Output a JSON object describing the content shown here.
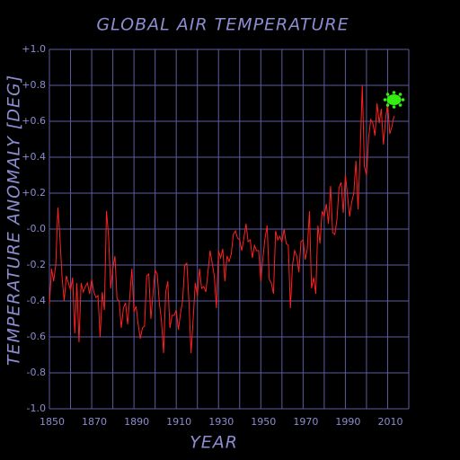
{
  "chart_data": {
    "type": "line",
    "title": "GLOBAL AIR TEMPERATURE",
    "xlabel": "YEAR",
    "ylabel": "TEMPERATURE ANOMALY [DEG]",
    "xlim": [
      1850,
      2020
    ],
    "ylim": [
      -1.0,
      1.0
    ],
    "xticks": [
      1850,
      1870,
      1890,
      1910,
      1930,
      1950,
      1970,
      1990,
      2010
    ],
    "xminor": [
      1860,
      1880,
      1900,
      1920,
      1940,
      1960,
      1980,
      2000,
      2020
    ],
    "yticks": [
      {
        "value": -1.0,
        "label": "-1.0"
      },
      {
        "value": -0.8,
        "label": "-0.8"
      },
      {
        "value": -0.6,
        "label": "-0.6"
      },
      {
        "value": -0.4,
        "label": "-0.4"
      },
      {
        "value": -0.2,
        "label": "-0.2"
      },
      {
        "value": 0,
        "label": "-0.0"
      },
      {
        "value": 0.2,
        "label": "+0.2"
      },
      {
        "value": 0.4,
        "label": "+0.4"
      },
      {
        "value": 0.6,
        "label": "+0.6"
      },
      {
        "value": 0.8,
        "label": "+0.8"
      },
      {
        "value": 1.0,
        "label": "+1.0"
      }
    ],
    "grid": true,
    "grid_color": "#5c5ca0",
    "x": [
      1850,
      1851,
      1852,
      1853,
      1854,
      1855,
      1856,
      1857,
      1858,
      1859,
      1860,
      1861,
      1862,
      1863,
      1864,
      1865,
      1866,
      1867,
      1868,
      1869,
      1870,
      1871,
      1872,
      1873,
      1874,
      1875,
      1876,
      1877,
      1878,
      1879,
      1880,
      1881,
      1882,
      1883,
      1884,
      1885,
      1886,
      1887,
      1888,
      1889,
      1890,
      1891,
      1892,
      1893,
      1894,
      1895,
      1896,
      1897,
      1898,
      1899,
      1900,
      1901,
      1902,
      1903,
      1904,
      1905,
      1906,
      1907,
      1908,
      1909,
      1910,
      1911,
      1912,
      1913,
      1914,
      1915,
      1916,
      1917,
      1918,
      1919,
      1920,
      1921,
      1922,
      1923,
      1924,
      1925,
      1926,
      1927,
      1928,
      1929,
      1930,
      1931,
      1932,
      1933,
      1934,
      1935,
      1936,
      1937,
      1938,
      1939,
      1940,
      1941,
      1942,
      1943,
      1944,
      1945,
      1946,
      1947,
      1948,
      1949,
      1950,
      1951,
      1952,
      1953,
      1954,
      1955,
      1956,
      1957,
      1958,
      1959,
      1960,
      1961,
      1962,
      1963,
      1964,
      1965,
      1966,
      1967,
      1968,
      1969,
      1970,
      1971,
      1972,
      1973,
      1974,
      1975,
      1976,
      1977,
      1978,
      1979,
      1980,
      1981,
      1982,
      1983,
      1984,
      1985,
      1986,
      1987,
      1988,
      1989,
      1990,
      1991,
      1992,
      1993,
      1994,
      1995,
      1996,
      1997,
      1998,
      1999,
      2000,
      2001,
      2002,
      2003,
      2004,
      2005,
      2006,
      2007,
      2008,
      2009,
      2010,
      2011,
      2012,
      2013
    ],
    "series": [
      {
        "color": "#ff2020",
        "values": [
          -0.42,
          -0.22,
          -0.29,
          -0.2,
          0.12,
          -0.05,
          -0.27,
          -0.4,
          -0.26,
          -0.3,
          -0.34,
          -0.27,
          -0.58,
          -0.3,
          -0.63,
          -0.3,
          -0.35,
          -0.32,
          -0.3,
          -0.36,
          -0.28,
          -0.35,
          -0.38,
          -0.37,
          -0.6,
          -0.35,
          -0.45,
          0.1,
          -0.04,
          -0.33,
          -0.22,
          -0.15,
          -0.39,
          -0.4,
          -0.55,
          -0.44,
          -0.41,
          -0.53,
          -0.38,
          -0.22,
          -0.46,
          -0.43,
          -0.53,
          -0.61,
          -0.55,
          -0.54,
          -0.26,
          -0.25,
          -0.5,
          -0.36,
          -0.23,
          -0.25,
          -0.41,
          -0.51,
          -0.69,
          -0.35,
          -0.29,
          -0.55,
          -0.48,
          -0.48,
          -0.45,
          -0.56,
          -0.47,
          -0.4,
          -0.2,
          -0.19,
          -0.4,
          -0.69,
          -0.5,
          -0.3,
          -0.37,
          -0.22,
          -0.33,
          -0.32,
          -0.35,
          -0.24,
          -0.12,
          -0.19,
          -0.26,
          -0.44,
          -0.12,
          -0.16,
          -0.11,
          -0.29,
          -0.15,
          -0.18,
          -0.14,
          -0.03,
          -0.01,
          -0.05,
          -0.06,
          -0.12,
          -0.05,
          0.03,
          -0.07,
          -0.06,
          -0.16,
          -0.09,
          -0.12,
          -0.12,
          -0.29,
          -0.16,
          -0.05,
          0.02,
          -0.28,
          -0.3,
          -0.36,
          -0.01,
          -0.06,
          -0.04,
          -0.07,
          0.0,
          -0.08,
          -0.09,
          -0.44,
          -0.2,
          -0.12,
          -0.15,
          -0.24,
          -0.07,
          -0.06,
          -0.17,
          -0.11,
          0.1,
          -0.33,
          -0.27,
          -0.36,
          0.02,
          -0.08,
          0.1,
          0.07,
          0.14,
          0.03,
          0.24,
          -0.02,
          -0.03,
          0.05,
          0.23,
          0.26,
          0.09,
          0.3,
          0.19,
          0.07,
          0.15,
          0.2,
          0.38,
          0.11,
          0.42,
          0.8,
          0.35,
          0.3,
          0.51,
          0.61,
          0.59,
          0.52,
          0.7,
          0.59,
          0.67,
          0.47,
          0.61,
          0.7,
          0.53,
          0.57,
          0.63
        ]
      }
    ],
    "marker": {
      "x": 2013,
      "y": 0.72,
      "color": "#33ee11"
    }
  }
}
